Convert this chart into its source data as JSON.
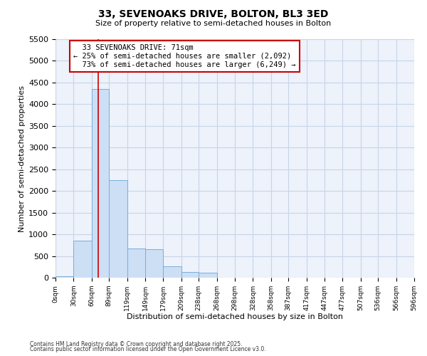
{
  "title_line1": "33, SEVENOAKS DRIVE, BOLTON, BL3 3ED",
  "title_line2": "Size of property relative to semi-detached houses in Bolton",
  "xlabel": "Distribution of semi-detached houses by size in Bolton",
  "ylabel": "Number of semi-detached properties",
  "bins": [
    0,
    30,
    60,
    89,
    119,
    149,
    179,
    209,
    238,
    268,
    298,
    328,
    358,
    387,
    417,
    447,
    477,
    507,
    536,
    566,
    596
  ],
  "bin_labels": [
    "0sqm",
    "30sqm",
    "60sqm",
    "89sqm",
    "119sqm",
    "149sqm",
    "179sqm",
    "209sqm",
    "238sqm",
    "268sqm",
    "298sqm",
    "328sqm",
    "358sqm",
    "387sqm",
    "417sqm",
    "447sqm",
    "477sqm",
    "507sqm",
    "536sqm",
    "566sqm",
    "596sqm"
  ],
  "bar_heights": [
    30,
    850,
    4350,
    2250,
    670,
    660,
    270,
    130,
    110,
    0,
    0,
    0,
    0,
    0,
    0,
    0,
    0,
    0,
    0,
    0
  ],
  "bar_color": "#ccdff5",
  "bar_edgecolor": "#7aaed6",
  "subject_value": 71,
  "subject_label": "33 SEVENOAKS DRIVE: 71sqm",
  "pct_smaller": 25,
  "pct_smaller_count": 2092,
  "pct_larger": 73,
  "pct_larger_count": 6249,
  "annotation_type": "semi-detached",
  "redline_color": "#cc0000",
  "annotation_box_edgecolor": "#cc0000",
  "ylim": [
    0,
    5500
  ],
  "yticks": [
    0,
    500,
    1000,
    1500,
    2000,
    2500,
    3000,
    3500,
    4000,
    4500,
    5000,
    5500
  ],
  "grid_color": "#c8d4e8",
  "bg_color": "#edf2fb",
  "footnote1": "Contains HM Land Registry data © Crown copyright and database right 2025.",
  "footnote2": "Contains public sector information licensed under the Open Government Licence v3.0."
}
